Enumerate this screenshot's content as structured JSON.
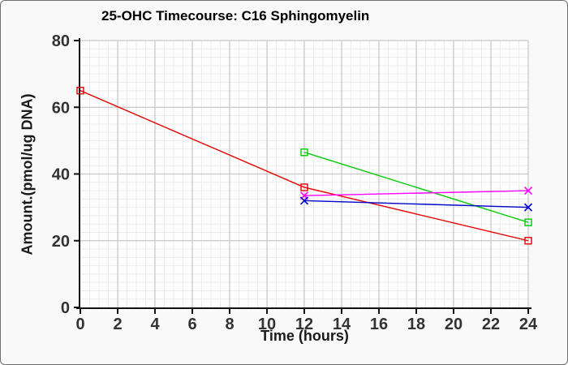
{
  "window": {
    "background": "#f9f9f9",
    "plot_background": "#fdfdfd",
    "border_color": "#6e6e6e"
  },
  "chart_data": {
    "type": "line",
    "title": "25-OHC Timecourse: C16 Sphingomyelin",
    "xlabel": "Time (hours)",
    "ylabel": "Amount.(pmol/ug DNA)",
    "xlim": [
      0,
      24
    ],
    "ylim": [
      0,
      80
    ],
    "xticks": [
      0,
      2,
      4,
      6,
      8,
      10,
      12,
      14,
      16,
      18,
      20,
      22,
      24
    ],
    "yticks": [
      0,
      20,
      40,
      60,
      80
    ],
    "grid": {
      "major_x_step": 2,
      "major_y_step": 20,
      "minor_x_step": 0.5,
      "minor_y_step": 2.5,
      "major_color": "#c7c7c7",
      "minor_color": "#ededed"
    },
    "axis_color": "#111111",
    "tick_label_color": "#333333",
    "legend": "none",
    "series": [
      {
        "name": "red-square-series",
        "color": "#e60000",
        "marker": "square",
        "x": [
          0,
          12,
          24
        ],
        "y": [
          65,
          36,
          20
        ]
      },
      {
        "name": "green-square-series",
        "color": "#00cc00",
        "marker": "square",
        "x": [
          12,
          24
        ],
        "y": [
          46.5,
          25.5
        ]
      },
      {
        "name": "magenta-x-series",
        "color": "#ff00ff",
        "marker": "x",
        "x": [
          12,
          24
        ],
        "y": [
          33.5,
          35
        ]
      },
      {
        "name": "blue-x-series",
        "color": "#0000cc",
        "marker": "x",
        "x": [
          12,
          24
        ],
        "y": [
          32,
          30
        ]
      }
    ]
  }
}
